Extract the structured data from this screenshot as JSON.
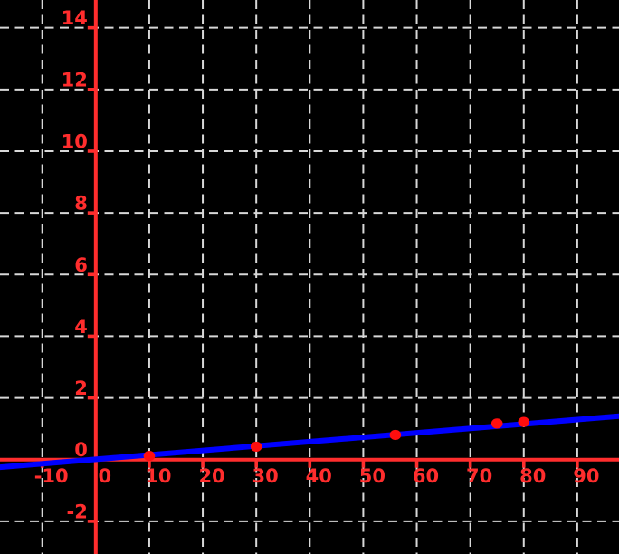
{
  "figure": {
    "description": "Scatter plot of five red data points with a blue linear trend line, red axes and dashed light-gray grid on a black background"
  },
  "chart_data": {
    "type": "scatter",
    "title": "",
    "xlabel": "",
    "ylabel": "",
    "points": [
      {
        "x": 10,
        "y": 0.12
      },
      {
        "x": 30,
        "y": 0.42
      },
      {
        "x": 56,
        "y": 0.8
      },
      {
        "x": 75,
        "y": 1.17
      },
      {
        "x": 80,
        "y": 1.22
      }
    ],
    "line": {
      "type": "linear",
      "slope": 0.0143,
      "intercept": 0.01,
      "equation": "y = 0.0143x + 0.01",
      "spans_full_width": true
    },
    "xlim": [
      -17.9,
      97.8
    ],
    "ylim": [
      -3.06,
      14.9
    ],
    "xticks": [
      -10,
      0,
      10,
      20,
      30,
      40,
      50,
      60,
      70,
      80,
      90
    ],
    "yticks": [
      -2,
      0,
      2,
      4,
      6,
      8,
      10,
      12,
      14
    ],
    "grid": {
      "visible": true,
      "style": "dashed",
      "which": "major"
    },
    "legend": {
      "visible": false
    },
    "colors": {
      "background": "#000000",
      "axes": "#ff2d2d",
      "tick_labels": "#ff2d2d",
      "grid": "#d8d8d8",
      "trend_line": "#0000ff",
      "points": "#ff0e0e"
    }
  }
}
